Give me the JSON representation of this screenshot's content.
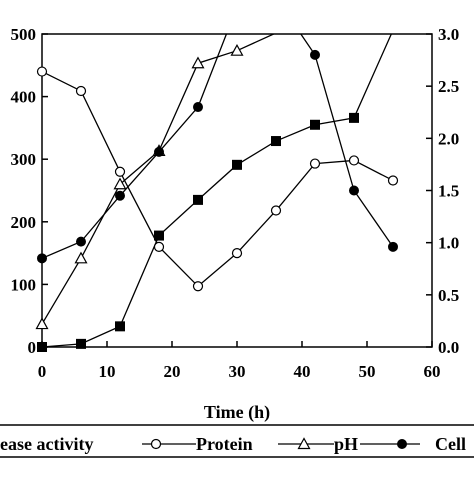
{
  "chart_data": {
    "type": "line",
    "xlabel": "Time (h)",
    "xlim": [
      0,
      60
    ],
    "x_ticks": [
      0,
      10,
      20,
      30,
      40,
      50,
      60
    ],
    "x_tick_labels": [
      "0",
      "10",
      "20",
      "30",
      "40",
      "50",
      "60"
    ],
    "y_left": {
      "lim": [
        0,
        500
      ],
      "ticks": [
        0,
        100,
        200,
        300,
        400,
        500
      ],
      "tick_labels": [
        "0",
        "100",
        "200",
        "300",
        "400",
        "500"
      ]
    },
    "y_right": {
      "lim": [
        0,
        3.0
      ],
      "ticks": [
        0,
        0.5,
        1.0,
        1.5,
        2.0,
        2.5,
        3.0
      ],
      "tick_labels": [
        "0.0",
        "0.5",
        "1.0",
        "1.5",
        "2.0",
        "2.5",
        "3.0"
      ]
    },
    "grid": false,
    "legend_position": "bottom",
    "series": [
      {
        "name": "Protease activity",
        "legend_label": "ease activity",
        "axis": "left",
        "marker": "filled-square",
        "x": [
          0,
          6,
          12,
          18,
          24,
          30,
          36,
          42,
          48,
          54
        ],
        "y": [
          0,
          5,
          33,
          178,
          235,
          291,
          329,
          355,
          366,
          506
        ]
      },
      {
        "name": "Protein",
        "legend_label": "Protein",
        "axis": "left",
        "marker": "open-circle",
        "x": [
          0,
          6,
          12,
          18,
          24,
          30,
          36,
          42,
          48,
          54
        ],
        "y": [
          440,
          409,
          280,
          160,
          97,
          150,
          218,
          293,
          298,
          266
        ]
      },
      {
        "name": "pH",
        "legend_label": "pH",
        "axis": "right",
        "marker": "open-triangle",
        "x": [
          0,
          6,
          12,
          18,
          24,
          30,
          36,
          42,
          48,
          54
        ],
        "y": [
          0.22,
          0.85,
          1.56,
          1.88,
          2.72,
          2.84,
          3.01,
          3.1,
          3.15,
          3.24
        ]
      },
      {
        "name": "Cell",
        "legend_label": "Cell",
        "axis": "right",
        "marker": "filled-circle",
        "x": [
          0,
          6,
          12,
          18,
          24,
          30,
          36,
          42,
          48,
          54
        ],
        "y": [
          0.85,
          1.01,
          1.45,
          1.87,
          2.3,
          3.26,
          3.35,
          2.8,
          1.5,
          0.96
        ]
      }
    ]
  }
}
